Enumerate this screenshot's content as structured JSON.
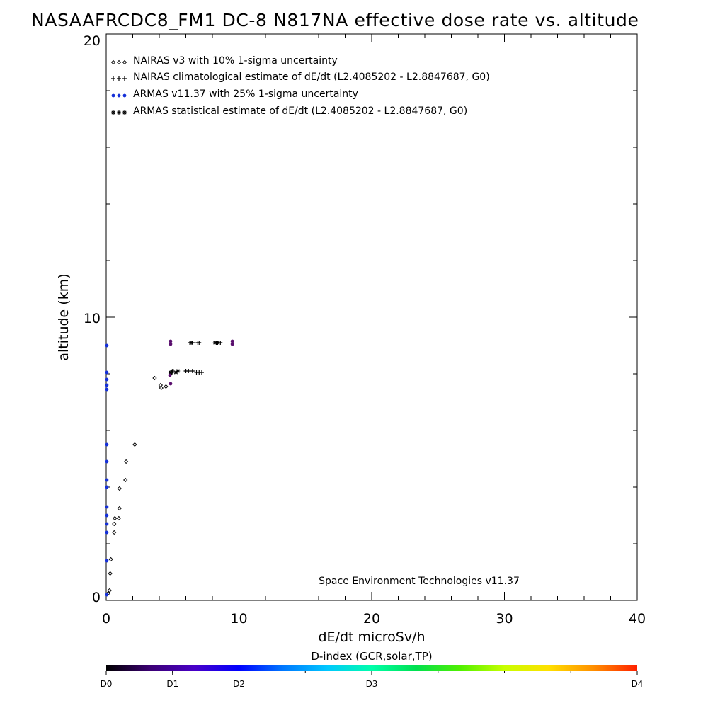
{
  "chart_data": {
    "type": "scatter",
    "title": "NASAAFRCDC8_FM1 DC-8   N817NA effective dose rate vs. altitude",
    "xlabel": "dE/dt microSv/h",
    "ylabel": "altitude (km)",
    "xlim": [
      0,
      40
    ],
    "ylim": [
      0,
      20
    ],
    "x_ticks": [
      "0",
      "10",
      "20",
      "30",
      "40"
    ],
    "y_ticks": [
      "0",
      "10",
      "20"
    ],
    "grid": false,
    "legend_position": "top-left",
    "credit": "Space Environment Technologies v11.37",
    "series": [
      {
        "name": "NAIRAS v3 with 10% 1-sigma uncertainty",
        "marker": "diamond-open",
        "color": "#000000",
        "points": [
          [
            0.15,
            0.25
          ],
          [
            0.25,
            0.35
          ],
          [
            0.3,
            0.95
          ],
          [
            0.35,
            1.45
          ],
          [
            0.6,
            2.4
          ],
          [
            0.6,
            2.7
          ],
          [
            0.65,
            2.9
          ],
          [
            0.95,
            2.9
          ],
          [
            1.0,
            3.25
          ],
          [
            1.0,
            3.95
          ],
          [
            1.45,
            4.25
          ],
          [
            1.5,
            4.9
          ],
          [
            2.15,
            5.5
          ],
          [
            3.65,
            7.85
          ],
          [
            4.1,
            7.6
          ],
          [
            4.15,
            7.5
          ],
          [
            4.5,
            7.55
          ],
          [
            4.85,
            8.0
          ],
          [
            4.9,
            8.05
          ]
        ]
      },
      {
        "name": "NAIRAS climatological estimate of dE/dt (L2.4085202 - L2.8847687, G0)",
        "marker": "plus",
        "color": "#000000",
        "points": [
          [
            6.3,
            9.1
          ],
          [
            6.5,
            9.1
          ],
          [
            6.9,
            9.1
          ],
          [
            7.0,
            9.1
          ],
          [
            6.0,
            8.1
          ],
          [
            6.2,
            8.1
          ],
          [
            6.5,
            8.1
          ],
          [
            6.8,
            8.05
          ],
          [
            7.0,
            8.05
          ],
          [
            7.2,
            8.05
          ],
          [
            8.3,
            9.1
          ],
          [
            8.6,
            9.1
          ]
        ]
      },
      {
        "name": "ARMAS v11.37 with 25% 1-sigma uncertainty",
        "marker": "circle-filled",
        "color": "#1530d8",
        "points": [
          [
            0.05,
            0.2
          ],
          [
            0.05,
            1.4
          ],
          [
            0.05,
            2.4
          ],
          [
            0.05,
            2.7
          ],
          [
            0.05,
            3.0
          ],
          [
            0.05,
            3.3
          ],
          [
            0.05,
            4.0
          ],
          [
            0.05,
            4.25
          ],
          [
            0.05,
            4.9
          ],
          [
            0.05,
            5.5
          ],
          [
            0.05,
            7.45
          ],
          [
            0.05,
            7.6
          ],
          [
            0.05,
            7.8
          ],
          [
            0.05,
            8.05
          ],
          [
            0.05,
            9.0
          ]
        ]
      },
      {
        "name": "ARMAS statistical estimate of dE/dt (L2.4085202 - L2.8847687, G0)",
        "marker": "asterisk",
        "color": "#000000",
        "points": [
          [
            4.85,
            8.05
          ],
          [
            5.0,
            8.1
          ],
          [
            5.25,
            8.05
          ],
          [
            5.4,
            8.1
          ],
          [
            6.4,
            9.1
          ],
          [
            8.2,
            9.1
          ],
          [
            8.4,
            9.1
          ]
        ]
      },
      {
        "name": "",
        "marker": "circle-filled",
        "color": "#5a0f6e",
        "points": [
          [
            4.85,
            9.05
          ],
          [
            4.85,
            9.15
          ],
          [
            4.8,
            7.95
          ],
          [
            4.85,
            7.65
          ],
          [
            9.5,
            9.05
          ],
          [
            9.5,
            9.15
          ]
        ]
      }
    ],
    "colorbar": {
      "title": "D-index (GCR,solar,TP)",
      "tick_labels": [
        "D0",
        "D1",
        "D2",
        "D3",
        "D4"
      ],
      "tick_positions": [
        0.0,
        0.125,
        0.25,
        0.5,
        1.0
      ],
      "colors": [
        "#000000",
        "#3c0074",
        "#4800c8",
        "#0000ff",
        "#0078ff",
        "#00c8ff",
        "#00ffaa",
        "#00e050",
        "#50f000",
        "#c8ff00",
        "#ffe000",
        "#ff9000",
        "#ff2000"
      ]
    }
  }
}
